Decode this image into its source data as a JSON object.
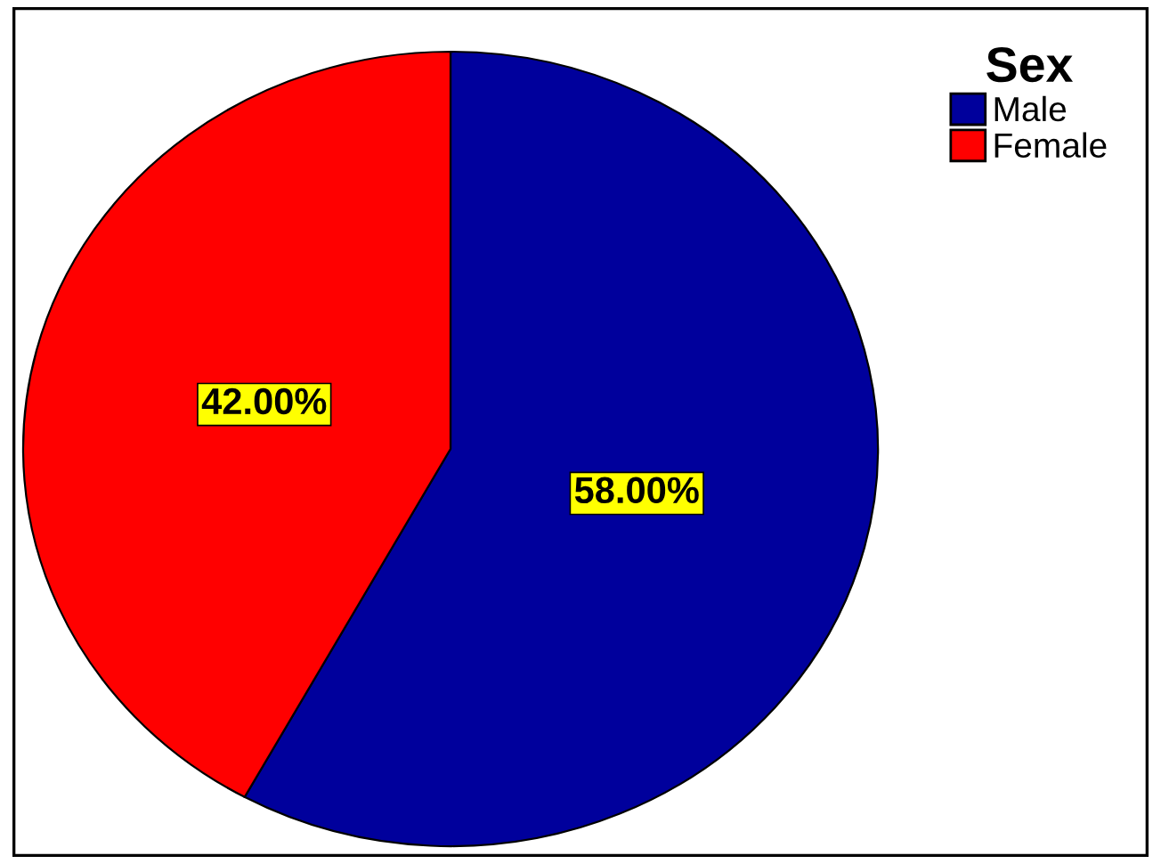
{
  "chart_data": {
    "type": "pie",
    "legend_title": "Sex",
    "legend": "top right",
    "categories": [
      "Male",
      "Female"
    ],
    "values": [
      58,
      42
    ],
    "colors": [
      "#00009c",
      "#ff0000"
    ],
    "value_labels": [
      "58.00%",
      "42.00%"
    ]
  }
}
